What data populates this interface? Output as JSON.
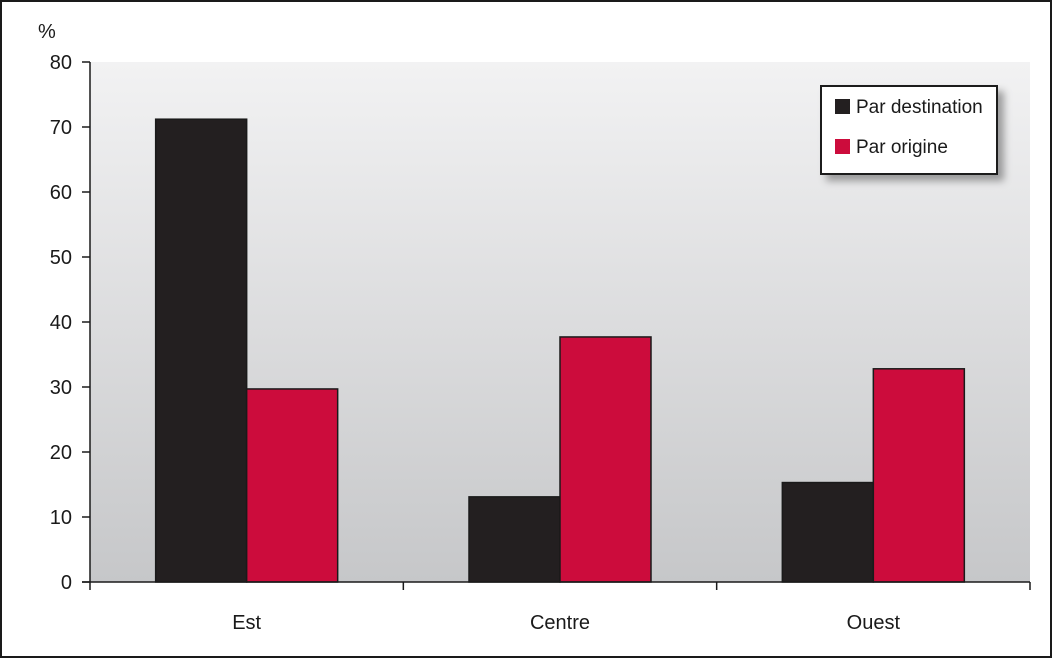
{
  "chart_data": {
    "type": "bar",
    "ylabel": "%",
    "xlabel": "",
    "title": "",
    "ylim": [
      0,
      80
    ],
    "yticks": [
      0,
      10,
      20,
      30,
      40,
      50,
      60,
      70,
      80
    ],
    "categories": [
      "Est",
      "Centre",
      "Ouest"
    ],
    "series": [
      {
        "name": "Par destination",
        "values": [
          71.2,
          13.1,
          15.3
        ],
        "color": "#231f20"
      },
      {
        "name": "Par origine",
        "values": [
          29.7,
          37.7,
          32.8
        ],
        "color": "#cc0c3c"
      }
    ],
    "legend": {
      "position": "top-right"
    },
    "grid": false,
    "background": {
      "top": "#f2f2f3",
      "bottom": "#c6c7c9"
    }
  }
}
